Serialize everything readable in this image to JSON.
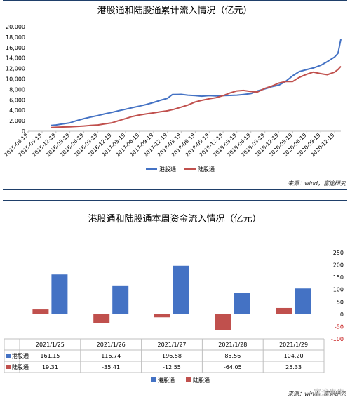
{
  "charts": {
    "cumulative": {
      "title": "港股通和陆股通累计流入情况（亿元）",
      "source": "来源：wind，富途研究"
    },
    "weekly": {
      "title": "港股通和陆股通本周资金流入情况（亿元）",
      "source": "来源：wind，富途研究",
      "table_rows": [
        "港股通",
        "陆股通"
      ]
    }
  },
  "watermark": "富途牛牛",
  "colors": {
    "hk_connect": "#4472c4",
    "sh_sz_connect": "#c0504d",
    "rule": "#1f3f6a"
  },
  "chart_data": [
    {
      "type": "line",
      "title": "港股通和陆股通累计流入情况（亿元）",
      "xlabel": "",
      "ylabel": "",
      "ylim": [
        0,
        20000
      ],
      "yticks": [
        0,
        2000,
        4000,
        6000,
        8000,
        10000,
        12000,
        14000,
        16000,
        18000,
        20000
      ],
      "ytick_labels": [
        "0",
        "2,000",
        "4,000",
        "6,000",
        "8,000",
        "10,000",
        "12,000",
        "14,000",
        "16,000",
        "18,000",
        "20,000"
      ],
      "x_tick_labels": [
        "2015-06-19",
        "2015-09-19",
        "2015-12-19",
        "2016-03-19",
        "2016-06-19",
        "2016-09-19",
        "2016-12-19",
        "2017-03-19",
        "2017-06-19",
        "2017-09-19",
        "2017-12-19",
        "2018-03-19",
        "2018-06-19",
        "2018-09-19",
        "2018-12-19",
        "2019-03-19",
        "2019-06-19",
        "2019-09-19",
        "2019-12-19",
        "2020-03-19",
        "2020-06-19",
        "2020-09-19",
        "2020-12-19"
      ],
      "legend": "bottom",
      "grid": false,
      "series": [
        {
          "name": "港股通",
          "color": "#4472c4",
          "x": [
            "2015-11-17",
            "2015-12-19",
            "2016-02-01",
            "2016-03-19",
            "2016-05-01",
            "2016-06-19",
            "2016-08-01",
            "2016-09-19",
            "2016-11-01",
            "2016-12-19",
            "2017-02-01",
            "2017-03-19",
            "2017-05-01",
            "2017-06-19",
            "2017-08-01",
            "2017-09-19",
            "2017-11-01",
            "2017-12-19",
            "2018-01-20",
            "2018-03-19",
            "2018-05-01",
            "2018-06-19",
            "2018-08-01",
            "2018-09-19",
            "2018-11-01",
            "2018-12-19",
            "2019-02-01",
            "2019-03-19",
            "2019-05-01",
            "2019-06-19",
            "2019-08-01",
            "2019-09-19",
            "2019-11-01",
            "2019-12-19",
            "2020-02-01",
            "2020-03-19",
            "2020-05-01",
            "2020-06-19",
            "2020-08-01",
            "2020-09-19",
            "2020-11-01",
            "2020-12-19",
            "2021-01-10",
            "2021-01-29"
          ],
          "y": [
            1100,
            1200,
            1400,
            1600,
            2000,
            2400,
            2700,
            3000,
            3300,
            3600,
            3900,
            4200,
            4500,
            4800,
            5100,
            5500,
            5900,
            6300,
            7000,
            7050,
            6900,
            6800,
            6700,
            6800,
            6750,
            6800,
            6850,
            6900,
            7000,
            7200,
            7700,
            8100,
            8500,
            8800,
            9500,
            10600,
            11400,
            11800,
            12100,
            12600,
            13300,
            14200,
            14900,
            17600
          ]
        },
        {
          "name": "陆股通",
          "color": "#c0504d",
          "x": [
            "2015-11-17",
            "2015-12-19",
            "2016-02-01",
            "2016-03-19",
            "2016-05-01",
            "2016-06-19",
            "2016-08-01",
            "2016-09-19",
            "2016-11-01",
            "2016-12-19",
            "2017-02-01",
            "2017-03-19",
            "2017-05-01",
            "2017-06-19",
            "2017-08-01",
            "2017-09-19",
            "2017-11-01",
            "2017-12-19",
            "2018-02-01",
            "2018-03-19",
            "2018-05-01",
            "2018-06-19",
            "2018-08-01",
            "2018-09-19",
            "2018-11-01",
            "2018-12-19",
            "2019-02-01",
            "2019-03-19",
            "2019-05-01",
            "2019-06-19",
            "2019-08-01",
            "2019-09-19",
            "2019-11-01",
            "2019-12-19",
            "2020-02-01",
            "2020-03-19",
            "2020-05-01",
            "2020-06-19",
            "2020-08-01",
            "2020-09-19",
            "2020-11-01",
            "2020-12-19",
            "2021-01-10",
            "2021-01-29"
          ],
          "y": [
            700,
            750,
            800,
            850,
            900,
            1000,
            1100,
            1200,
            1400,
            1600,
            2000,
            2400,
            2800,
            3100,
            3300,
            3500,
            3700,
            3900,
            4200,
            4600,
            5000,
            5600,
            5900,
            6200,
            6400,
            6800,
            7300,
            7700,
            7800,
            7600,
            7500,
            8200,
            8600,
            9200,
            9500,
            9500,
            10300,
            10900,
            11300,
            11000,
            10800,
            11300,
            11800,
            12400
          ]
        }
      ]
    },
    {
      "type": "bar",
      "title": "港股通和陆股通本周资金流入情况（亿元）",
      "categories": [
        "2021/1/25",
        "2021/1/26",
        "2021/1/27",
        "2021/1/28",
        "2021/1/29"
      ],
      "ylim": [
        -100,
        250
      ],
      "yticks": [
        -100,
        -50,
        0,
        50,
        100,
        150,
        200,
        250
      ],
      "ytick_labels": [
        "-100",
        "-50",
        "0",
        "50",
        "100",
        "150",
        "200",
        "250"
      ],
      "legend": "bottom",
      "grid": false,
      "series": [
        {
          "name": "港股通",
          "color": "#4472c4",
          "values": [
            161.15,
            116.74,
            196.58,
            85.56,
            104.2
          ],
          "labels": [
            "161.15",
            "116.74",
            "196.58",
            "85.56",
            "104.20"
          ]
        },
        {
          "name": "陆股通",
          "color": "#c0504d",
          "values": [
            19.31,
            -35.41,
            -12.55,
            -64.05,
            25.33
          ],
          "labels": [
            "19.31",
            "-35.41",
            "-12.55",
            "-64.05",
            "25.33"
          ]
        }
      ]
    }
  ]
}
